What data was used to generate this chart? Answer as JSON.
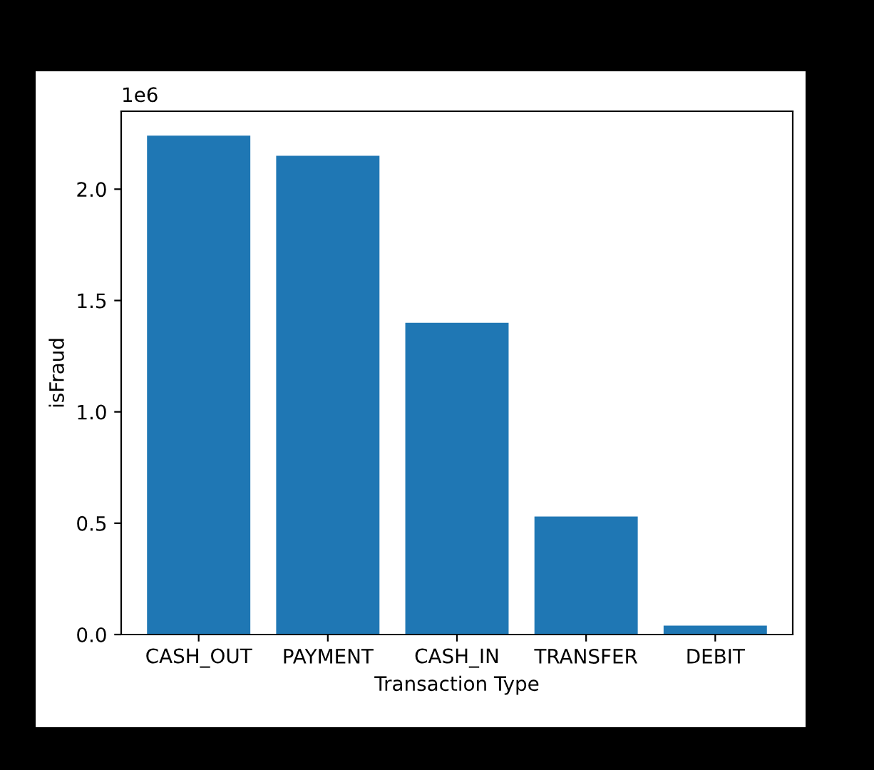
{
  "chart_data": {
    "type": "bar",
    "xlabel": "Transaction Type",
    "ylabel": "isFraud",
    "categories": [
      "CASH_OUT",
      "PAYMENT",
      "CASH_IN",
      "TRANSFER",
      "DEBIT"
    ],
    "values": [
      2.24,
      2.15,
      1.4,
      0.53,
      0.04
    ],
    "color": "#1f77b4",
    "ylim": [
      0,
      2.35
    ],
    "yticks": [
      {
        "value": 0,
        "label": "0.0"
      },
      {
        "value": 0.5,
        "label": "0.5"
      },
      {
        "value": 1.0,
        "label": "1.0"
      },
      {
        "value": 1.5,
        "label": "1.5"
      },
      {
        "value": 2.0,
        "label": "2.0"
      }
    ],
    "annotations": [
      "1e6"
    ],
    "grid": false
  }
}
